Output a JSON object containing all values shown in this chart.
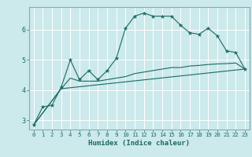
{
  "xlabel": "Humidex (Indice chaleur)",
  "ylabel": "",
  "bg_color": "#cce9eb",
  "line_color": "#1a6b60",
  "grid_color": "#ffffff",
  "xlim": [
    -0.5,
    23.5
  ],
  "ylim": [
    2.7,
    6.75
  ],
  "yticks": [
    3,
    4,
    5,
    6
  ],
  "xticks": [
    0,
    1,
    2,
    3,
    4,
    5,
    6,
    7,
    8,
    9,
    10,
    11,
    12,
    13,
    14,
    15,
    16,
    17,
    18,
    19,
    20,
    21,
    22,
    23
  ],
  "line1_x": [
    0,
    1,
    2,
    3,
    4,
    5,
    6,
    7,
    8,
    9,
    10,
    11,
    12,
    13,
    14,
    15,
    16,
    17,
    18,
    19,
    20,
    21,
    22,
    23
  ],
  "line1_y": [
    2.85,
    3.45,
    3.5,
    4.1,
    5.0,
    4.35,
    4.65,
    4.35,
    4.65,
    5.05,
    6.05,
    6.45,
    6.55,
    6.45,
    6.45,
    6.45,
    6.15,
    5.9,
    5.85,
    6.05,
    5.8,
    5.3,
    5.25,
    4.7
  ],
  "line2_x": [
    0,
    3,
    4,
    5,
    6,
    7,
    8,
    9,
    10,
    11,
    12,
    13,
    14,
    15,
    16,
    17,
    18,
    19,
    20,
    21,
    22,
    23
  ],
  "line2_y": [
    2.85,
    4.05,
    4.4,
    4.3,
    4.3,
    4.3,
    4.35,
    4.4,
    4.45,
    4.55,
    4.6,
    4.65,
    4.7,
    4.75,
    4.75,
    4.8,
    4.82,
    4.85,
    4.87,
    4.88,
    4.9,
    4.7
  ],
  "line3_x": [
    0,
    3,
    23
  ],
  "line3_y": [
    2.85,
    4.05,
    4.7
  ]
}
